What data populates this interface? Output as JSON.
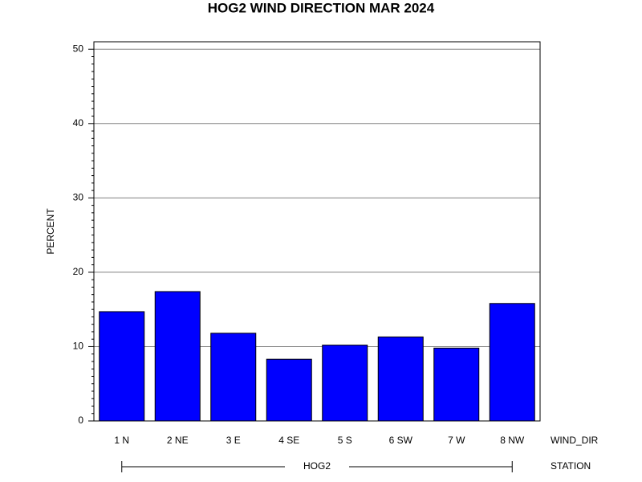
{
  "chart_data": {
    "type": "bar",
    "title": "HOG2 WIND DIRECTION MAR 2024",
    "ylabel": "PERCENT",
    "xlabel": "WIND_DIR",
    "group_axis_label": "STATION",
    "group": "HOG2",
    "categories": [
      "1 N",
      "2 NE",
      "3 E",
      "4 SE",
      "5 S",
      "6 SW",
      "7 W",
      "8 NW"
    ],
    "values": [
      14.7,
      17.4,
      11.8,
      8.3,
      10.2,
      11.3,
      9.8,
      15.8
    ],
    "color": "#0000ff",
    "ylim": [
      0,
      51
    ],
    "yticks": [
      0,
      10,
      20,
      30,
      40,
      50
    ],
    "grid": true
  }
}
